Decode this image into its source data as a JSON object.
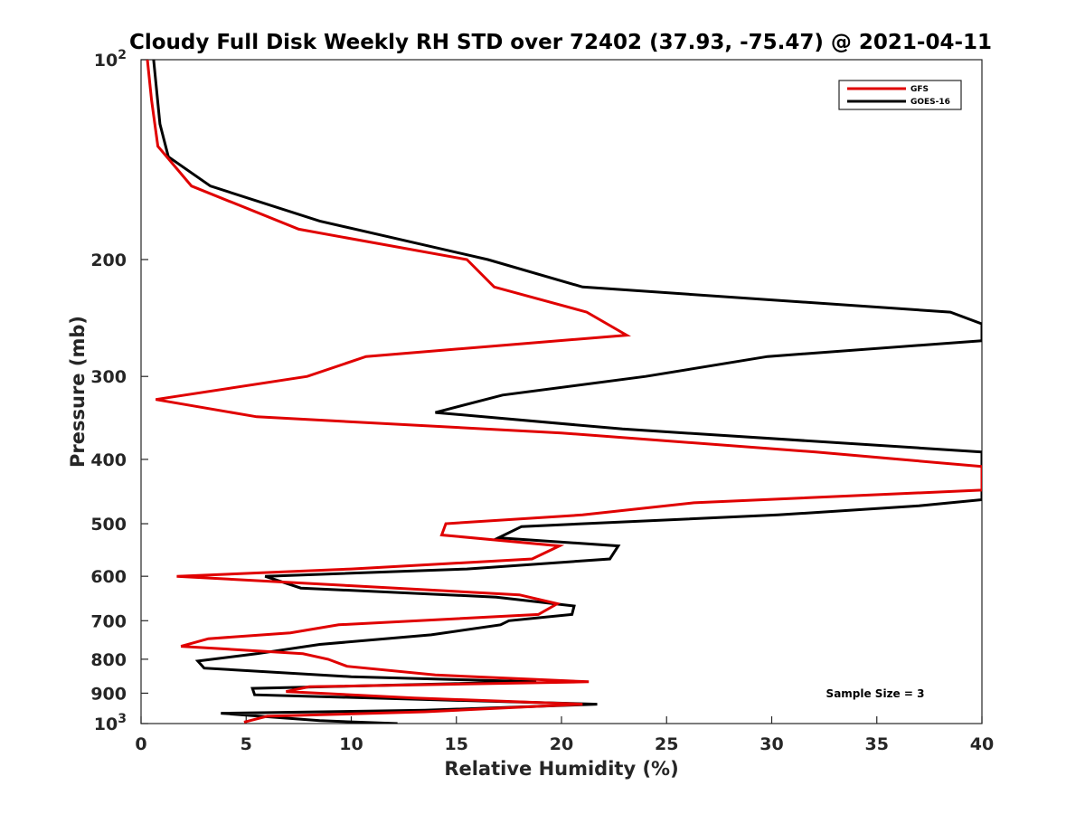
{
  "chart_data": {
    "type": "line",
    "title": "Cloudy Full Disk Weekly RH STD over 72402 (37.93, -75.47) @ 2021-04-11",
    "xlabel": "Relative Humidity (%)",
    "ylabel": "Pressure (mb)",
    "xlim": [
      0,
      40
    ],
    "ylim": [
      100,
      1000
    ],
    "yscale": "log",
    "y_reversed": true,
    "grid": false,
    "legend_position": "top-right",
    "x_ticks": [
      0,
      5,
      10,
      15,
      20,
      25,
      30,
      35,
      40
    ],
    "y_ticks": [
      {
        "value": 100,
        "label": "10",
        "exp": "2"
      },
      {
        "value": 200,
        "label": "200"
      },
      {
        "value": 300,
        "label": "300"
      },
      {
        "value": 400,
        "label": "400"
      },
      {
        "value": 500,
        "label": "500"
      },
      {
        "value": 600,
        "label": "600"
      },
      {
        "value": 700,
        "label": "700"
      },
      {
        "value": 800,
        "label": "800"
      },
      {
        "value": 900,
        "label": "900"
      },
      {
        "value": 1000,
        "label": "10",
        "exp": "3"
      }
    ],
    "series": [
      {
        "name": "GFS",
        "color": "#e00000",
        "points": [
          [
            0.3,
            100
          ],
          [
            0.5,
            115
          ],
          [
            0.8,
            135
          ],
          [
            2.4,
            155
          ],
          [
            7.5,
            180
          ],
          [
            15.5,
            200
          ],
          [
            16.8,
            220
          ],
          [
            21.2,
            240
          ],
          [
            23.1,
            260
          ],
          [
            10.7,
            280
          ],
          [
            7.9,
            300
          ],
          [
            0.7,
            325
          ],
          [
            5.5,
            345
          ],
          [
            20,
            365
          ],
          [
            32.1,
            390
          ],
          [
            40,
            410
          ],
          [
            40,
            445
          ],
          [
            26.3,
            465
          ],
          [
            21,
            485
          ],
          [
            14.5,
            500
          ],
          [
            14.3,
            520
          ],
          [
            19.9,
            540
          ],
          [
            18.6,
            565
          ],
          [
            10,
            585
          ],
          [
            1.7,
            600
          ],
          [
            10,
            620
          ],
          [
            18,
            640
          ],
          [
            19.8,
            660
          ],
          [
            18.9,
            685
          ],
          [
            9.4,
            710
          ],
          [
            7.1,
            730
          ],
          [
            3.2,
            745
          ],
          [
            1.9,
            765
          ],
          [
            7.7,
            785
          ],
          [
            8.9,
            800
          ],
          [
            9.8,
            820
          ],
          [
            14,
            845
          ],
          [
            21.3,
            865
          ],
          [
            8,
            880
          ],
          [
            6.9,
            895
          ],
          [
            13,
            915
          ],
          [
            21,
            935
          ],
          [
            13.5,
            960
          ],
          [
            6,
            975
          ],
          [
            4.9,
            995
          ]
        ]
      },
      {
        "name": "GOES-16",
        "color": "#000000",
        "points": [
          [
            0.6,
            100
          ],
          [
            0.9,
            125
          ],
          [
            1.3,
            140
          ],
          [
            3.3,
            155
          ],
          [
            8.5,
            175
          ],
          [
            16.5,
            200
          ],
          [
            21,
            220
          ],
          [
            38.5,
            240
          ],
          [
            40,
            250
          ],
          [
            40,
            265
          ],
          [
            29.8,
            280
          ],
          [
            24,
            300
          ],
          [
            17.2,
            320
          ],
          [
            14,
            340
          ],
          [
            22.9,
            360
          ],
          [
            37.3,
            385
          ],
          [
            40,
            390
          ],
          [
            40,
            460
          ],
          [
            37,
            470
          ],
          [
            30.3,
            485
          ],
          [
            18.1,
            505
          ],
          [
            17,
            525
          ],
          [
            22.7,
            540
          ],
          [
            22.3,
            565
          ],
          [
            15.5,
            585
          ],
          [
            5.9,
            600
          ],
          [
            7.6,
            625
          ],
          [
            16.9,
            645
          ],
          [
            20.6,
            665
          ],
          [
            20.5,
            685
          ],
          [
            17.5,
            700
          ],
          [
            17.1,
            710
          ],
          [
            13.8,
            735
          ],
          [
            8.5,
            760
          ],
          [
            5.5,
            785
          ],
          [
            2.7,
            805
          ],
          [
            3,
            825
          ],
          [
            10,
            850
          ],
          [
            18.8,
            865
          ],
          [
            5.3,
            885
          ],
          [
            5.4,
            905
          ],
          [
            21.7,
            935
          ],
          [
            13.5,
            955
          ],
          [
            3.8,
            965
          ],
          [
            8.5,
            990
          ],
          [
            12.2,
            1000
          ]
        ]
      }
    ],
    "annotation": "Sample Size = 3"
  }
}
